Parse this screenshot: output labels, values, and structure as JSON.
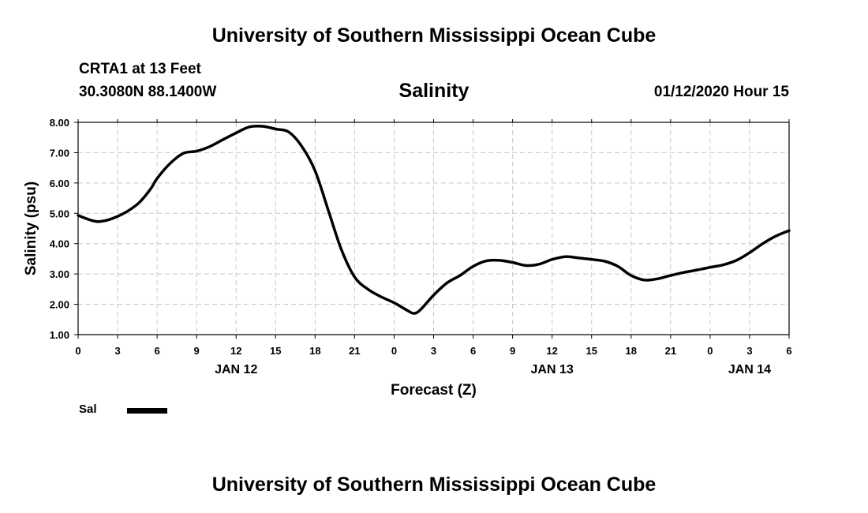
{
  "header": {
    "title": "University of Southern Mississippi Ocean Cube",
    "station": "CRTA1 at 13 Feet",
    "coordinates": "30.3080N 88.1400W",
    "chart_title": "Salinity",
    "timestamp": "01/12/2020 Hour 15"
  },
  "footer": {
    "title": "University of Southern Mississippi Ocean Cube"
  },
  "legend": {
    "label": "Sal",
    "color": "#000000"
  },
  "chart_data": {
    "type": "line",
    "title": "Salinity",
    "xlabel": "Forecast (Z)",
    "ylabel": "Salinity (psu)",
    "ylim": [
      1.0,
      8.0
    ],
    "yticks": [
      "1.00",
      "2.00",
      "3.00",
      "4.00",
      "5.00",
      "6.00",
      "7.00",
      "8.00"
    ],
    "xlim": [
      0,
      54
    ],
    "xticks": [
      0,
      3,
      6,
      9,
      12,
      15,
      18,
      21,
      24,
      27,
      30,
      33,
      36,
      39,
      42,
      45,
      48,
      51,
      54
    ],
    "xtick_labels": [
      "0",
      "3",
      "6",
      "9",
      "12",
      "15",
      "18",
      "21",
      "0",
      "3",
      "6",
      "9",
      "12",
      "15",
      "18",
      "21",
      "0",
      "3",
      "6"
    ],
    "date_labels": [
      {
        "x": 12,
        "label": "JAN 12"
      },
      {
        "x": 36,
        "label": "JAN 13"
      },
      {
        "x": 51,
        "label": "JAN 14"
      }
    ],
    "grid": true,
    "series": [
      {
        "name": "Sal",
        "color": "#000000",
        "x": [
          0,
          1.5,
          3,
          4.5,
          5.5,
          6,
          7,
          8,
          9,
          10,
          11,
          12,
          13,
          14,
          15,
          16,
          17,
          18,
          19,
          20,
          21,
          22,
          23,
          24,
          25,
          25.5,
          26,
          27,
          28,
          29,
          30,
          31,
          32,
          33,
          34,
          35,
          36,
          37,
          38,
          39,
          40,
          41,
          42,
          43,
          44,
          45,
          46,
          47,
          48,
          49,
          50,
          51,
          52,
          53,
          54
        ],
        "y": [
          4.93,
          4.73,
          4.9,
          5.3,
          5.8,
          6.15,
          6.65,
          6.98,
          7.05,
          7.2,
          7.43,
          7.65,
          7.85,
          7.87,
          7.78,
          7.68,
          7.2,
          6.4,
          5.1,
          3.8,
          2.9,
          2.5,
          2.25,
          2.05,
          1.8,
          1.7,
          1.82,
          2.3,
          2.7,
          2.95,
          3.25,
          3.43,
          3.45,
          3.38,
          3.28,
          3.32,
          3.48,
          3.57,
          3.53,
          3.48,
          3.42,
          3.25,
          2.95,
          2.8,
          2.84,
          2.95,
          3.05,
          3.13,
          3.22,
          3.3,
          3.45,
          3.7,
          4.0,
          4.25,
          4.43
        ]
      }
    ]
  }
}
